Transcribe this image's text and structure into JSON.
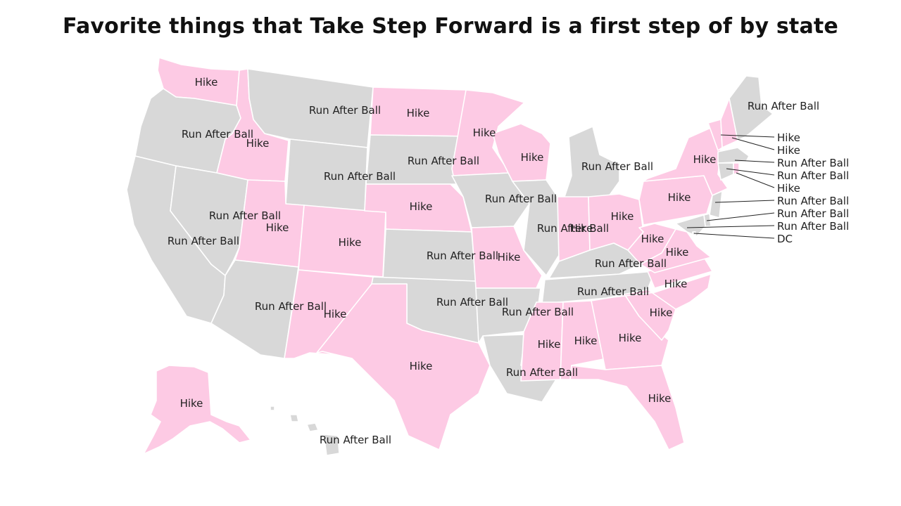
{
  "title": "Favorite things that Take Step Forward is a first step of by state",
  "legend_colors": {
    "Hike": "#fdcae4",
    "Run After Ball": "#d8d8d8"
  },
  "states": [
    {
      "id": "WA",
      "value": "Hike"
    },
    {
      "id": "OR",
      "value": "Run After Ball"
    },
    {
      "id": "CA",
      "value": "Run After Ball"
    },
    {
      "id": "ID",
      "value": "Hike"
    },
    {
      "id": "NV",
      "value": "Run After Ball"
    },
    {
      "id": "MT",
      "value": "Run After Ball"
    },
    {
      "id": "WY",
      "value": "Run After Ball"
    },
    {
      "id": "UT",
      "value": "Hike"
    },
    {
      "id": "AZ",
      "value": "Run After Ball"
    },
    {
      "id": "CO",
      "value": "Hike"
    },
    {
      "id": "NM",
      "value": "Hike"
    },
    {
      "id": "ND",
      "value": "Hike"
    },
    {
      "id": "SD",
      "value": "Run After Ball"
    },
    {
      "id": "NE",
      "value": "Hike"
    },
    {
      "id": "KS",
      "value": "Run After Ball"
    },
    {
      "id": "OK",
      "value": "Run After Ball"
    },
    {
      "id": "TX",
      "value": "Hike"
    },
    {
      "id": "MN",
      "value": "Hike"
    },
    {
      "id": "IA",
      "value": "Run After Ball"
    },
    {
      "id": "MO",
      "value": "Hike"
    },
    {
      "id": "AR",
      "value": "Run After Ball"
    },
    {
      "id": "LA",
      "value": "Run After Ball"
    },
    {
      "id": "WI",
      "value": "Hike"
    },
    {
      "id": "IL",
      "value": "Run After Ball"
    },
    {
      "id": "MI",
      "value": "Run After Ball"
    },
    {
      "id": "IN",
      "value": "Hike"
    },
    {
      "id": "OH",
      "value": "Hike"
    },
    {
      "id": "KY",
      "value": "Run After Ball"
    },
    {
      "id": "TN",
      "value": "Run After Ball"
    },
    {
      "id": "MS",
      "value": "Hike"
    },
    {
      "id": "AL",
      "value": "Hike"
    },
    {
      "id": "GA",
      "value": "Hike"
    },
    {
      "id": "FL",
      "value": "Hike"
    },
    {
      "id": "SC",
      "value": "Hike"
    },
    {
      "id": "NC",
      "value": "Hike"
    },
    {
      "id": "VA",
      "value": "Hike"
    },
    {
      "id": "WV",
      "value": "Hike"
    },
    {
      "id": "PA",
      "value": "Hike"
    },
    {
      "id": "NY",
      "value": "Hike"
    },
    {
      "id": "ME",
      "value": "Run After Ball"
    },
    {
      "id": "VT",
      "value": "Hike"
    },
    {
      "id": "NH",
      "value": "Hike"
    },
    {
      "id": "MA",
      "value": "Run After Ball"
    },
    {
      "id": "CT",
      "value": "Run After Ball"
    },
    {
      "id": "RI",
      "value": "Hike"
    },
    {
      "id": "NJ",
      "value": "Run After Ball"
    },
    {
      "id": "DE",
      "value": "Run After Ball"
    },
    {
      "id": "MD",
      "value": "Run After Ball"
    },
    {
      "id": "DC",
      "value": "DC"
    },
    {
      "id": "AK",
      "value": "Hike"
    },
    {
      "id": "HI",
      "value": "Run After Ball"
    }
  ]
}
